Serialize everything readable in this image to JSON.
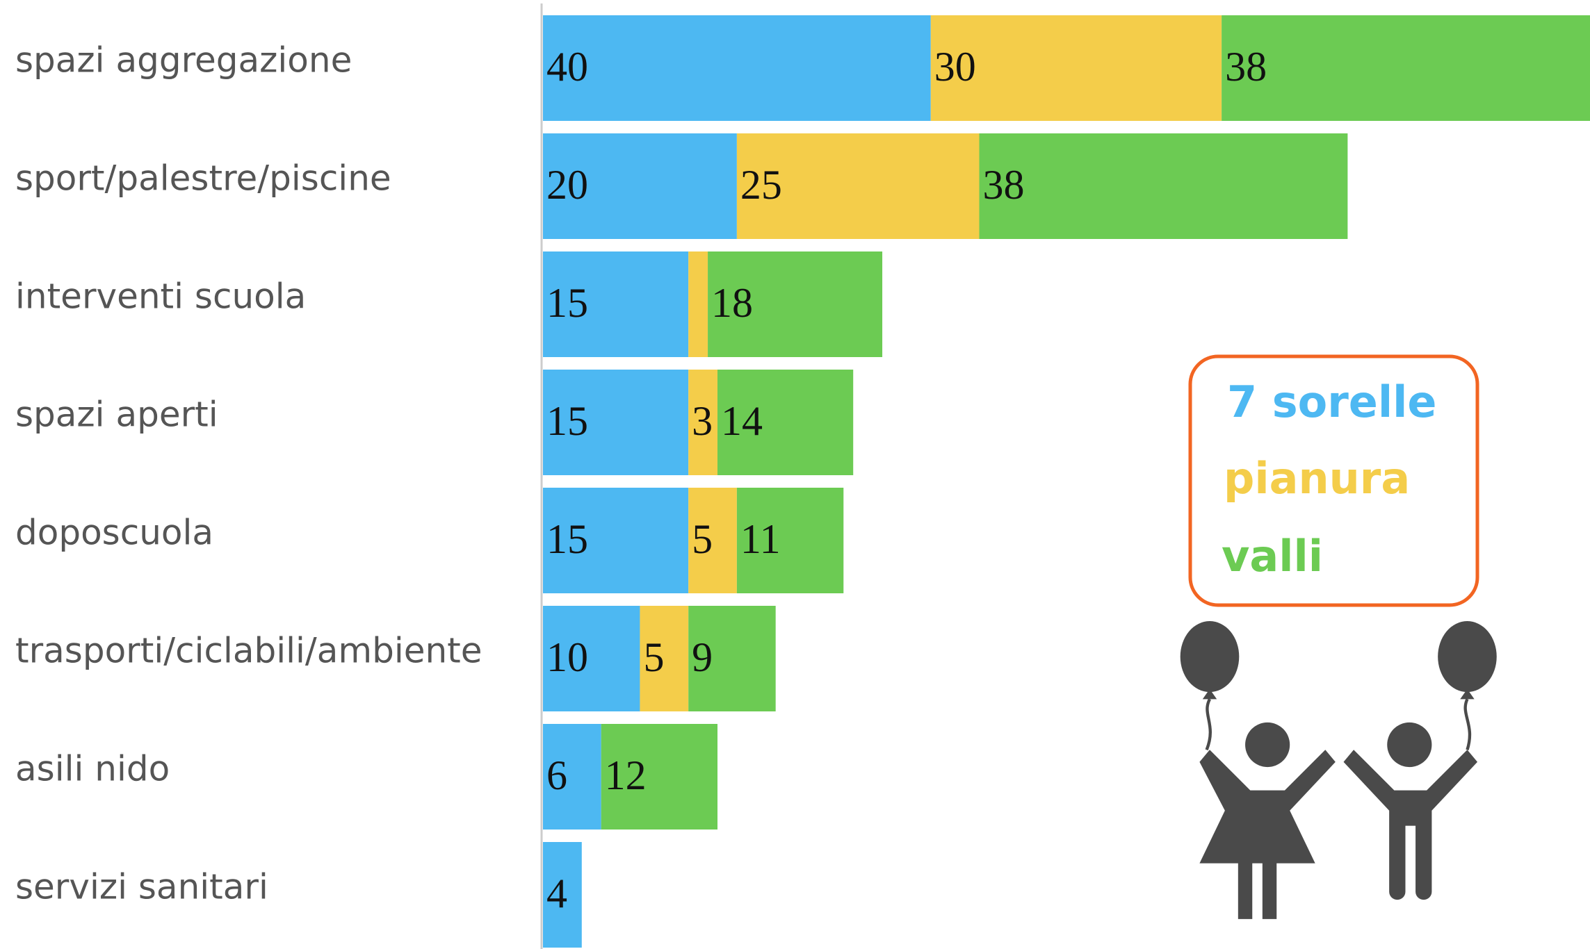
{
  "chart_data": {
    "type": "stacked-bar-horizontal",
    "categories": [
      "spazi aggregazione",
      "sport/palestre/piscine",
      "interventi scuola",
      "spazi aperti",
      "doposcuola",
      "trasporti/ciclabili/ambiente",
      "asili nido",
      "servizi sanitari"
    ],
    "series": [
      {
        "name": "7 sorelle",
        "color": "#4db8f2",
        "values": [
          40,
          20,
          15,
          15,
          15,
          10,
          6,
          4
        ]
      },
      {
        "name": "pianura",
        "color": "#f4cd4a",
        "values": [
          30,
          25,
          2,
          3,
          5,
          5,
          null,
          null
        ]
      },
      {
        "name": "valli",
        "color": "#6ccb53",
        "values": [
          38,
          38,
          18,
          14,
          11,
          9,
          12,
          null
        ]
      }
    ],
    "xlim": [
      0,
      108
    ]
  }
}
